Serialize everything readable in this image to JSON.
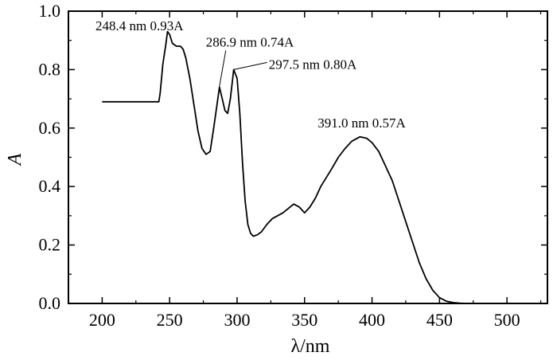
{
  "chart_data": {
    "type": "line",
    "title": "",
    "xlabel": "λ/nm",
    "ylabel": "A",
    "xlim": [
      175,
      530
    ],
    "ylim": [
      0.0,
      1.0
    ],
    "xticks": [
      200,
      250,
      300,
      350,
      400,
      450,
      500
    ],
    "yticks": [
      0.0,
      0.2,
      0.4,
      0.6,
      0.8,
      1.0
    ],
    "ytick_labels": [
      "0.0",
      "0.2",
      "0.4",
      "0.6",
      "0.8",
      "1.0"
    ],
    "grid": false,
    "legend": "none",
    "series": [
      {
        "color": "#000000",
        "x": [
          200,
          242,
          243,
          245,
          247,
          248.4,
          250,
          252,
          255,
          258,
          260,
          262,
          265,
          268,
          271,
          274,
          277,
          280,
          283,
          286.9,
          289,
          291,
          293,
          295,
          297.5,
          300,
          302,
          304,
          306,
          308,
          310,
          312,
          315,
          318,
          322,
          326,
          330,
          334,
          338,
          342,
          346,
          350,
          354,
          358,
          362,
          366,
          370,
          375,
          380,
          385,
          391,
          396,
          400,
          405,
          410,
          415,
          420,
          425,
          430,
          435,
          440,
          445,
          450,
          455,
          460,
          465,
          470,
          475
        ],
        "y": [
          0.69,
          0.69,
          0.72,
          0.82,
          0.88,
          0.93,
          0.92,
          0.89,
          0.88,
          0.88,
          0.87,
          0.84,
          0.77,
          0.68,
          0.59,
          0.53,
          0.51,
          0.52,
          0.61,
          0.74,
          0.7,
          0.66,
          0.65,
          0.7,
          0.8,
          0.77,
          0.65,
          0.48,
          0.35,
          0.27,
          0.24,
          0.23,
          0.235,
          0.245,
          0.27,
          0.29,
          0.3,
          0.31,
          0.325,
          0.34,
          0.33,
          0.31,
          0.33,
          0.36,
          0.4,
          0.43,
          0.46,
          0.5,
          0.53,
          0.555,
          0.57,
          0.565,
          0.55,
          0.52,
          0.47,
          0.42,
          0.35,
          0.28,
          0.21,
          0.14,
          0.085,
          0.045,
          0.02,
          0.008,
          0.003,
          0.001,
          0.0,
          0.0
        ]
      }
    ],
    "annotations": [
      {
        "text": "248.4 nm 0.93A",
        "x": 248.4,
        "y": 0.93
      },
      {
        "text": "286.9 nm  0.74A",
        "x": 286.9,
        "y": 0.74
      },
      {
        "text": "297.5 nm  0.80A",
        "x": 297.5,
        "y": 0.8
      },
      {
        "text": "391.0 nm  0.57A",
        "x": 391.0,
        "y": 0.57
      }
    ]
  }
}
